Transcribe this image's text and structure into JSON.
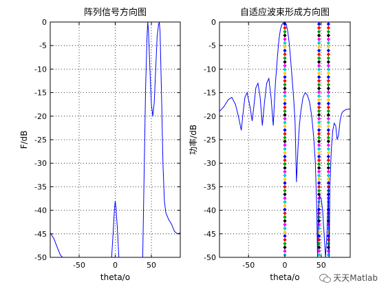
{
  "chart_data": [
    {
      "type": "line",
      "title": "阵列信号方向图",
      "xlabel": "theta/o",
      "ylabel": "F/dB",
      "xlim": [
        -90,
        90
      ],
      "ylim": [
        -50,
        0
      ],
      "xticks": [
        -50,
        0,
        50
      ],
      "yticks": [
        0,
        -5,
        -10,
        -15,
        -20,
        -25,
        -30,
        -35,
        -40,
        -45,
        -50
      ],
      "grid": true,
      "series": [
        {
          "color": "#0000ff",
          "x": [
            -90,
            -85,
            -80,
            -76,
            -73,
            -5,
            -3,
            -1,
            0,
            1,
            3,
            5,
            7,
            38,
            40,
            42,
            44,
            45,
            46,
            48,
            50,
            52,
            54,
            56,
            58,
            60,
            61,
            62,
            64,
            66,
            68,
            70,
            74,
            78,
            82,
            86,
            90
          ],
          "y": [
            -44.8,
            -46,
            -48,
            -49.5,
            -50,
            -50,
            -45,
            -39.5,
            -38,
            -39.5,
            -44,
            -50,
            -50,
            -50,
            -32,
            -14,
            -3,
            0,
            -2,
            -10,
            -17.5,
            -20,
            -17,
            -10,
            -3,
            -0.5,
            0,
            -2,
            -15,
            -30,
            -38,
            -40.5,
            -42,
            -43,
            -44.5,
            -45,
            -44.8
          ]
        }
      ]
    },
    {
      "type": "line",
      "title": "自适应波束形成方向图",
      "xlabel": "theta/o",
      "ylabel": "功率/dB",
      "xlim": [
        -90,
        90
      ],
      "ylim": [
        -50,
        0
      ],
      "xticks": [
        -50,
        0,
        50
      ],
      "yticks": [
        0,
        -5,
        -10,
        -15,
        -20,
        -25,
        -30,
        -35,
        -40,
        -45,
        -50
      ],
      "grid": true,
      "series": [
        {
          "color": "#0000ff",
          "x": [
            -90,
            -84,
            -78,
            -73,
            -68,
            -64,
            -60,
            -58,
            -55,
            -52,
            -48,
            -45,
            -42,
            -40,
            -37,
            -34,
            -31,
            -28,
            -25,
            -22,
            -19,
            -16,
            -13,
            -10,
            -8,
            -6,
            -4,
            -2,
            0,
            2,
            4,
            6,
            8,
            10,
            12,
            14,
            16,
            18,
            20,
            22,
            25,
            28,
            31,
            34,
            37,
            40,
            42,
            44,
            45,
            46,
            47,
            48,
            50,
            52,
            54,
            56,
            58,
            60,
            61,
            62,
            64,
            66,
            68,
            70,
            72,
            74,
            76,
            78,
            80,
            84,
            88,
            90
          ],
          "y": [
            -19,
            -18,
            -16.5,
            -16,
            -17.5,
            -20,
            -23,
            -20,
            -16,
            -15,
            -18,
            -21,
            -17,
            -14,
            -13,
            -16,
            -22,
            -17,
            -13,
            -12,
            -16,
            -22,
            -13,
            -7,
            -3.5,
            -1.5,
            -0.5,
            -0.2,
            0,
            -0.5,
            -2,
            -4.5,
            -8,
            -12,
            -16,
            -21,
            -34,
            -27,
            -22,
            -19,
            -16,
            -15,
            -15.5,
            -17,
            -20,
            -25,
            -30,
            -40,
            -50,
            -40,
            -38,
            -37,
            -37.5,
            -40,
            -45,
            -50,
            -45,
            -35,
            -50,
            -35,
            -27,
            -23,
            -21.5,
            -22,
            -25,
            -24,
            -21,
            -19.5,
            -19,
            -18.6,
            -18.5,
            -18.5
          ]
        }
      ],
      "marker_lines": [
        {
          "x": 0,
          "style": "dotted",
          "marker": "diamond"
        },
        {
          "x": 47,
          "style": "dotted",
          "marker": "diamond"
        },
        {
          "x": 60,
          "style": "dotted",
          "marker": "diamond"
        }
      ],
      "marker_colors": [
        "#0000ff",
        "#ff0000",
        "#00a000",
        "#000000",
        "#ff00ff",
        "#00cccc",
        "#ffcc00"
      ]
    }
  ],
  "watermark": {
    "icon": "wechat-icon",
    "text": "天天Matlab"
  }
}
